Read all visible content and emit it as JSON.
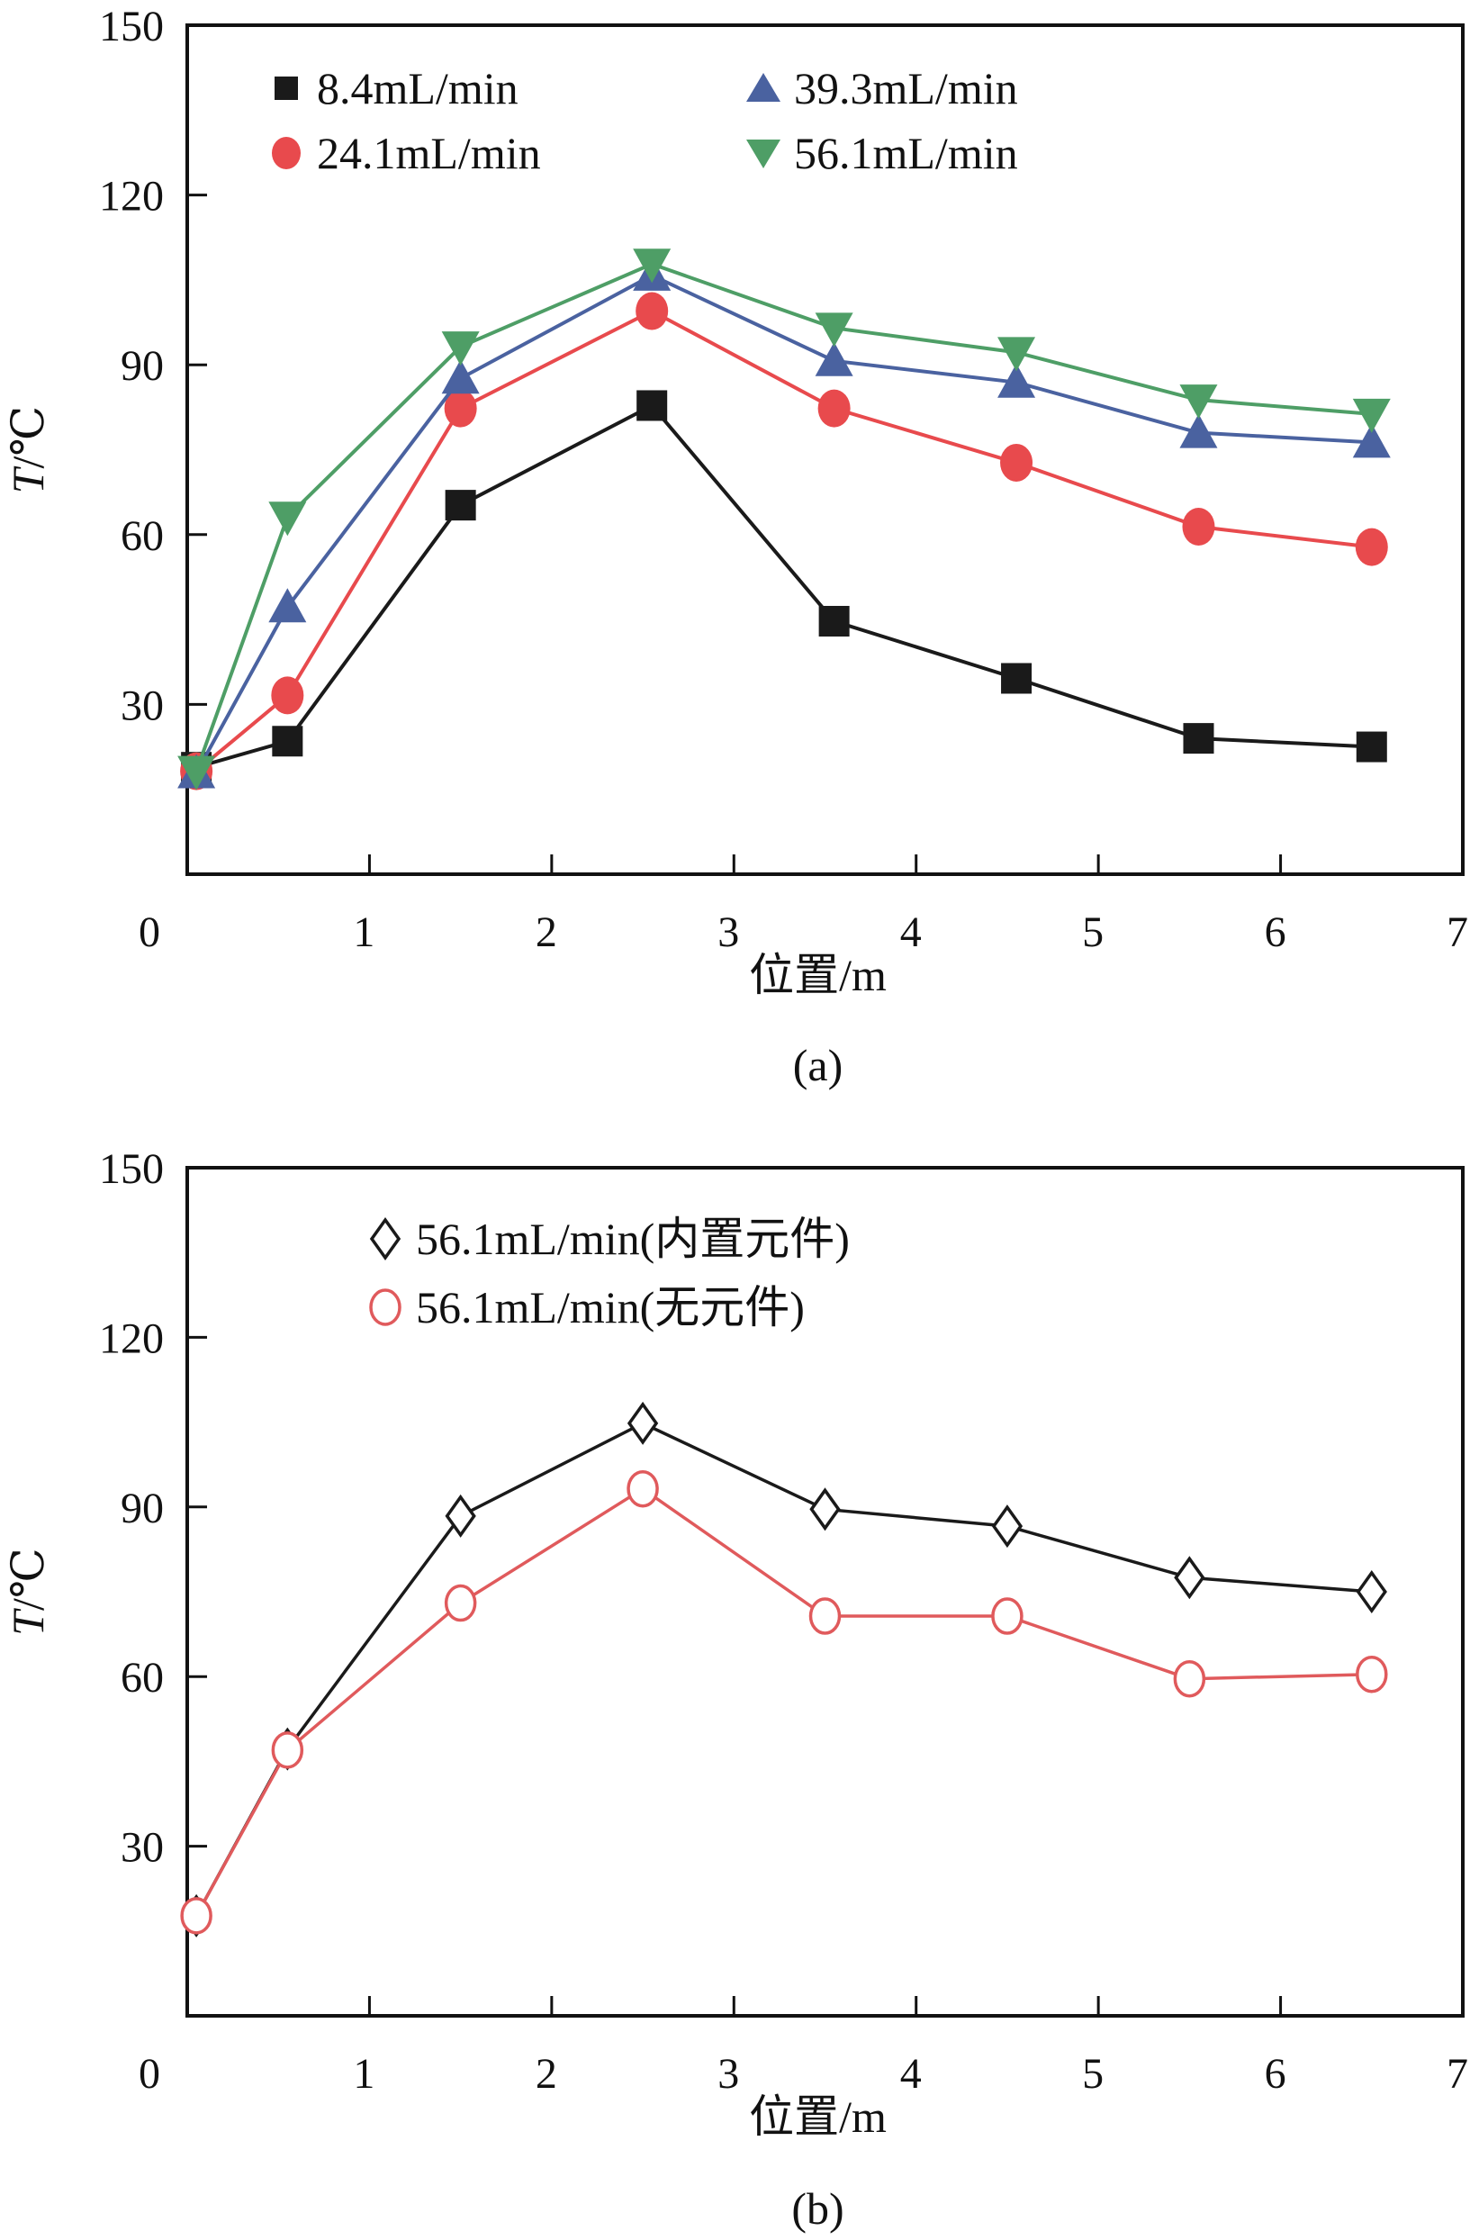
{
  "chart_data": [
    {
      "id": "a",
      "type": "line",
      "caption": "(a)",
      "xlabel": "位置/m",
      "ylabel_italic": "T",
      "ylabel_rest": "/℃",
      "xlim": [
        0,
        7
      ],
      "ylim": [
        0,
        150
      ],
      "xticks": [
        0,
        1,
        2,
        3,
        4,
        5,
        6,
        7
      ],
      "yticks": [
        0,
        30,
        60,
        90,
        120,
        150
      ],
      "grid": false,
      "legend_position": "top-left, two columns",
      "x": [
        0.05,
        0.55,
        1.5,
        2.55,
        3.55,
        4.55,
        5.55,
        6.5
      ],
      "series": [
        {
          "name": "8.4mL/min",
          "marker": "square",
          "color": "#1a1a1a",
          "filled": true,
          "values": [
            18.9,
            23.5,
            65.2,
            82.8,
            44.7,
            34.6,
            24.0,
            22.5
          ]
        },
        {
          "name": "24.1mL/min",
          "marker": "circle",
          "color": "#e84a4d",
          "filled": true,
          "values": [
            18.2,
            31.6,
            82.3,
            99.5,
            82.3,
            72.7,
            61.4,
            57.8
          ]
        },
        {
          "name": "39.3mL/min",
          "marker": "triangle-up",
          "color": "#4a62a0",
          "filled": true,
          "values": [
            17.9,
            47.2,
            87.6,
            105.8,
            90.7,
            86.9,
            78.0,
            76.3
          ]
        },
        {
          "name": "56.1mL/min",
          "marker": "triangle-down",
          "color": "#4e9e66",
          "filled": true,
          "values": [
            18.2,
            63.1,
            93.2,
            107.8,
            96.5,
            92.2,
            83.8,
            81.3
          ]
        }
      ]
    },
    {
      "id": "b",
      "type": "line",
      "caption": "(b)",
      "xlabel": "位置/m",
      "ylabel_italic": "T",
      "ylabel_rest": "/℃",
      "xlim": [
        0,
        7
      ],
      "ylim": [
        0,
        150
      ],
      "xticks": [
        0,
        1,
        2,
        3,
        4,
        5,
        6,
        7
      ],
      "yticks": [
        0,
        30,
        60,
        90,
        120,
        150
      ],
      "grid": false,
      "legend_position": "top-left",
      "x": [
        0.05,
        0.55,
        1.5,
        2.5,
        3.5,
        4.5,
        5.5,
        6.5
      ],
      "series": [
        {
          "name": "56.1mL/min(内置元件)",
          "marker": "diamond",
          "color": "#1a1a1a",
          "filled": false,
          "values": [
            17.7,
            47.2,
            88.4,
            104.8,
            89.6,
            86.6,
            77.5,
            75.0
          ]
        },
        {
          "name": "56.1mL/min(无元件)",
          "marker": "circle",
          "color": "#e05a5c",
          "filled": false,
          "values": [
            17.7,
            47.0,
            73.0,
            93.2,
            70.7,
            70.7,
            59.6,
            60.4
          ]
        }
      ]
    }
  ]
}
